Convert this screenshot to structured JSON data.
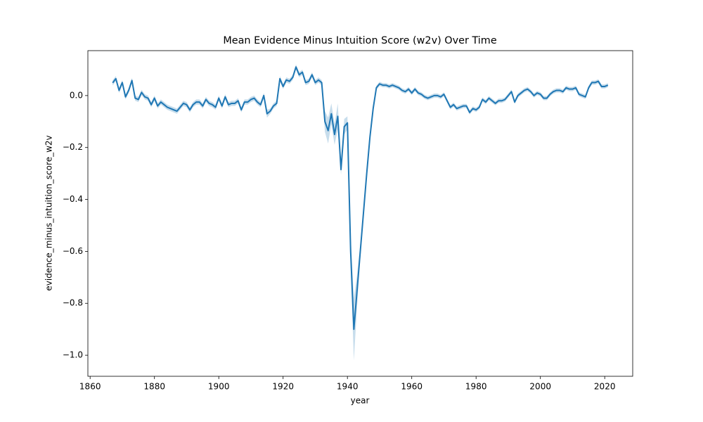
{
  "chart_data": {
    "type": "line",
    "title": "Mean Evidence Minus Intuition Score (w2v) Over Time",
    "x_label": "year",
    "y_label": "evidence_minus_intuition_score_w2v",
    "x": [
      1867,
      1868,
      1869,
      1870,
      1871,
      1872,
      1873,
      1874,
      1875,
      1876,
      1877,
      1878,
      1879,
      1880,
      1881,
      1882,
      1883,
      1884,
      1885,
      1886,
      1887,
      1888,
      1889,
      1890,
      1891,
      1892,
      1893,
      1894,
      1895,
      1896,
      1897,
      1898,
      1899,
      1900,
      1901,
      1902,
      1903,
      1904,
      1905,
      1906,
      1907,
      1908,
      1909,
      1910,
      1911,
      1912,
      1913,
      1914,
      1915,
      1916,
      1917,
      1918,
      1919,
      1920,
      1921,
      1922,
      1923,
      1924,
      1925,
      1926,
      1927,
      1928,
      1929,
      1930,
      1931,
      1932,
      1933,
      1934,
      1935,
      1936,
      1937,
      1938,
      1939,
      1940,
      1941,
      1942,
      1943,
      1944,
      1945,
      1946,
      1947,
      1948,
      1949,
      1950,
      1951,
      1952,
      1953,
      1954,
      1955,
      1956,
      1957,
      1958,
      1959,
      1960,
      1961,
      1962,
      1963,
      1964,
      1965,
      1966,
      1967,
      1968,
      1969,
      1970,
      1971,
      1972,
      1973,
      1974,
      1975,
      1976,
      1977,
      1978,
      1979,
      1980,
      1981,
      1982,
      1983,
      1984,
      1985,
      1986,
      1987,
      1988,
      1989,
      1990,
      1991,
      1992,
      1993,
      1994,
      1995,
      1996,
      1997,
      1998,
      1999,
      2000,
      2001,
      2002,
      2003,
      2004,
      2005,
      2006,
      2007,
      2008,
      2009,
      2010,
      2011,
      2012,
      2013,
      2014,
      2015,
      2016,
      2017,
      2018,
      2019,
      2020,
      2021
    ],
    "series": [
      {
        "color": "#1f77b4",
        "values": [
          0.049,
          0.065,
          0.02,
          0.05,
          -0.005,
          0.02,
          0.058,
          -0.01,
          -0.015,
          0.012,
          -0.005,
          -0.01,
          -0.035,
          -0.01,
          -0.04,
          -0.025,
          -0.035,
          -0.045,
          -0.05,
          -0.055,
          -0.06,
          -0.045,
          -0.03,
          -0.035,
          -0.055,
          -0.035,
          -0.025,
          -0.025,
          -0.04,
          -0.015,
          -0.03,
          -0.035,
          -0.045,
          -0.01,
          -0.04,
          -0.005,
          -0.035,
          -0.03,
          -0.03,
          -0.02,
          -0.055,
          -0.025,
          -0.025,
          -0.015,
          -0.01,
          -0.025,
          -0.035,
          0.0,
          -0.07,
          -0.06,
          -0.04,
          -0.03,
          0.065,
          0.035,
          0.06,
          0.055,
          0.07,
          0.11,
          0.08,
          0.09,
          0.05,
          0.055,
          0.08,
          0.05,
          0.06,
          0.05,
          -0.1,
          -0.135,
          -0.07,
          -0.15,
          -0.08,
          -0.285,
          -0.12,
          -0.105,
          -0.6,
          -0.9,
          -0.75,
          -0.6,
          -0.45,
          -0.3,
          -0.16,
          -0.05,
          0.03,
          0.045,
          0.04,
          0.04,
          0.035,
          0.04,
          0.035,
          0.03,
          0.02,
          0.015,
          0.025,
          0.01,
          0.025,
          0.01,
          0.005,
          -0.005,
          -0.01,
          -0.005,
          0.0,
          0.0,
          -0.005,
          0.005,
          -0.02,
          -0.045,
          -0.035,
          -0.05,
          -0.045,
          -0.04,
          -0.04,
          -0.065,
          -0.05,
          -0.055,
          -0.045,
          -0.015,
          -0.025,
          -0.01,
          -0.02,
          -0.03,
          -0.02,
          -0.02,
          -0.015,
          0.0,
          0.015,
          -0.025,
          0.0,
          0.01,
          0.02,
          0.025,
          0.015,
          0.0,
          0.01,
          0.005,
          -0.01,
          -0.01,
          0.005,
          0.015,
          0.02,
          0.02,
          0.015,
          0.03,
          0.025,
          0.025,
          0.03,
          0.005,
          0.0,
          -0.005,
          0.03,
          0.05,
          0.05,
          0.055,
          0.035,
          0.035,
          0.04
        ],
        "errors": [
          0.01,
          0.01,
          0.01,
          0.01,
          0.01,
          0.01,
          0.01,
          0.01,
          0.01,
          0.01,
          0.01,
          0.01,
          0.01,
          0.01,
          0.01,
          0.01,
          0.01,
          0.01,
          0.01,
          0.01,
          0.01,
          0.01,
          0.01,
          0.01,
          0.01,
          0.01,
          0.01,
          0.01,
          0.01,
          0.01,
          0.01,
          0.01,
          0.01,
          0.01,
          0.01,
          0.01,
          0.01,
          0.01,
          0.01,
          0.01,
          0.01,
          0.01,
          0.01,
          0.01,
          0.01,
          0.01,
          0.01,
          0.01,
          0.015,
          0.01,
          0.01,
          0.01,
          0.01,
          0.01,
          0.01,
          0.01,
          0.01,
          0.01,
          0.01,
          0.01,
          0.01,
          0.01,
          0.01,
          0.01,
          0.01,
          0.01,
          0.04,
          0.05,
          0.04,
          0.04,
          0.05,
          0.02,
          0.03,
          0.025,
          0.06,
          0.12,
          0.06,
          0.03,
          0.008,
          0.008,
          0.008,
          0.008,
          0.008,
          0.008,
          0.008,
          0.008,
          0.008,
          0.008,
          0.008,
          0.008,
          0.008,
          0.008,
          0.008,
          0.008,
          0.008,
          0.008,
          0.008,
          0.008,
          0.008,
          0.008,
          0.008,
          0.008,
          0.008,
          0.008,
          0.008,
          0.008,
          0.008,
          0.008,
          0.008,
          0.008,
          0.008,
          0.008,
          0.008,
          0.008,
          0.008,
          0.008,
          0.008,
          0.008,
          0.008,
          0.008,
          0.008,
          0.008,
          0.008,
          0.008,
          0.008,
          0.008,
          0.008,
          0.008,
          0.008,
          0.008,
          0.008,
          0.008,
          0.008,
          0.008,
          0.008,
          0.008,
          0.008,
          0.008,
          0.008,
          0.008,
          0.008,
          0.008,
          0.008,
          0.008,
          0.008,
          0.008,
          0.008,
          0.008,
          0.008,
          0.008,
          0.008,
          0.008,
          0.008,
          0.008,
          0.008
        ]
      }
    ],
    "xlim": [
      1859.3,
      2028.7
    ],
    "ylim": [
      -1.081,
      0.173
    ],
    "xticks": [
      1860,
      1880,
      1900,
      1920,
      1940,
      1960,
      1980,
      2000,
      2020
    ],
    "yticks": [
      {
        "value": -1.0,
        "label": "−1.0"
      },
      {
        "value": -0.8,
        "label": "−0.8"
      },
      {
        "value": -0.6,
        "label": "−0.6"
      },
      {
        "value": -0.4,
        "label": "−0.4"
      },
      {
        "value": -0.2,
        "label": "−0.2"
      },
      {
        "value": 0.0,
        "label": "0.0"
      }
    ]
  }
}
